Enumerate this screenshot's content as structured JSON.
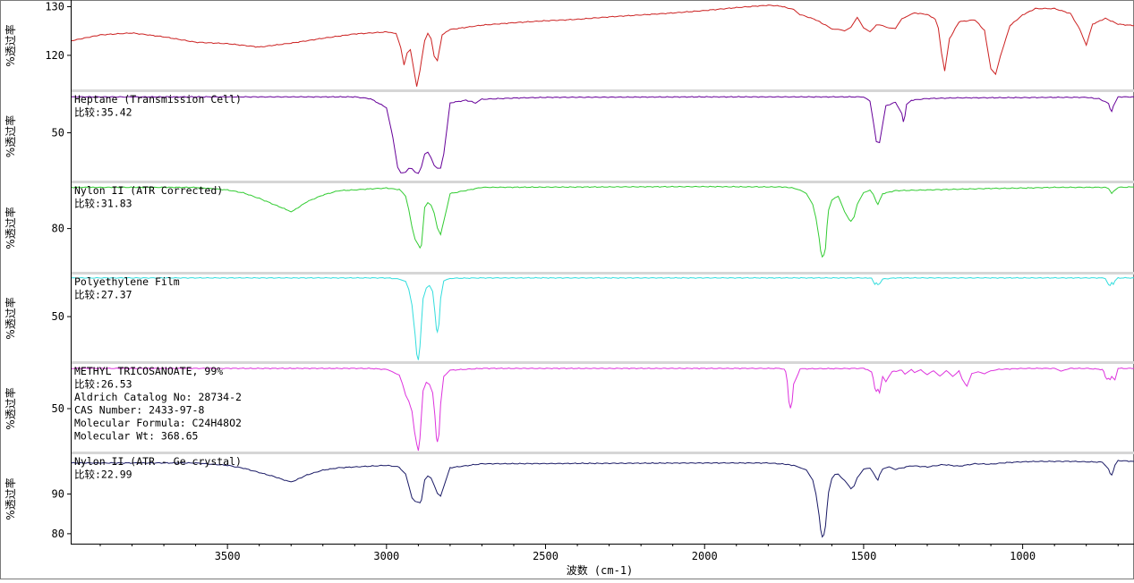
{
  "chart_data": {
    "type": "line",
    "xlabel": "波数 (cm-1)",
    "x_ticks": [
      3500,
      3000,
      2500,
      2000,
      1500,
      1000
    ],
    "xlim": [
      3990,
      650
    ],
    "grid": false,
    "panels": [
      {
        "color": "#cc2222",
        "ylabel": "%透过率",
        "ylim": [
          113,
          131
        ],
        "y_ticks": [
          120,
          130
        ],
        "labels": [],
        "x": [
          3990,
          3900,
          3800,
          3700,
          3600,
          3500,
          3400,
          3300,
          3200,
          3100,
          3000,
          2970,
          2955,
          2945,
          2935,
          2925,
          2915,
          2905,
          2895,
          2880,
          2870,
          2860,
          2850,
          2840,
          2825,
          2800,
          2700,
          2600,
          2500,
          2400,
          2300,
          2200,
          2100,
          2000,
          1900,
          1800,
          1760,
          1720,
          1700,
          1650,
          1620,
          1600,
          1580,
          1560,
          1540,
          1520,
          1500,
          1480,
          1460,
          1440,
          1420,
          1400,
          1380,
          1360,
          1340,
          1300,
          1275,
          1265,
          1255,
          1245,
          1230,
          1200,
          1150,
          1120,
          1100,
          1085,
          1070,
          1040,
          1000,
          960,
          900,
          850,
          820,
          800,
          780,
          740,
          700,
          650
        ],
        "y": [
          123,
          124.2,
          124.6,
          123.8,
          122.7,
          122.4,
          121.7,
          122.5,
          123.5,
          124.4,
          124.8,
          124.5,
          121.5,
          118,
          120.5,
          121.2,
          117.5,
          113.6,
          116.8,
          123,
          124.6,
          123.5,
          119.8,
          118.8,
          124.2,
          125.3,
          126.2,
          126.7,
          127.1,
          127.4,
          127.9,
          128.3,
          128.7,
          129.2,
          129.8,
          130.3,
          130.1,
          129.4,
          128.4,
          127.3,
          126.2,
          125.5,
          125.3,
          125,
          125.8,
          127.8,
          125.6,
          124.9,
          126.2,
          126.1,
          125.7,
          125.4,
          127.6,
          128.1,
          128.7,
          128.4,
          127.4,
          125.6,
          120.5,
          116.8,
          123.4,
          126.9,
          127.3,
          125.1,
          117.3,
          116.1,
          119.8,
          126.1,
          128.3,
          129.6,
          129.6,
          128.6,
          125.3,
          122.1,
          126.4,
          127.6,
          126.4,
          126.1
        ]
      },
      {
        "color": "#660099",
        "ylabel": "%透过率",
        "ylim": [
          30,
          67
        ],
        "y_ticks": [
          50
        ],
        "labels": [
          "Heptane (Transmission Cell)",
          "比较:35.42"
        ],
        "x": [
          3990,
          3100,
          3050,
          3000,
          2980,
          2965,
          2955,
          2940,
          2930,
          2920,
          2910,
          2900,
          2890,
          2880,
          2870,
          2860,
          2850,
          2840,
          2830,
          2820,
          2800,
          2750,
          2720,
          2700,
          2600,
          2500,
          2000,
          1600,
          1500,
          1480,
          1470,
          1460,
          1450,
          1440,
          1430,
          1400,
          1380,
          1375,
          1370,
          1365,
          1350,
          1300,
          1200,
          1000,
          900,
          800,
          760,
          730,
          725,
          720,
          715,
          700,
          650
        ],
        "y": [
          65,
          65,
          64.2,
          60.5,
          48,
          35.5,
          33.4,
          33.6,
          35,
          34.8,
          33.5,
          33.2,
          36,
          41,
          41.7,
          39.5,
          36.5,
          35.3,
          35.2,
          41,
          62.5,
          63.6,
          62.5,
          64,
          64.5,
          64.8,
          65,
          65,
          65,
          63,
          55,
          46.5,
          46,
          53.5,
          61.2,
          62.8,
          58,
          54.5,
          57,
          61.8,
          63.6,
          64.3,
          64.6,
          64.7,
          64.8,
          64.8,
          64.2,
          62.3,
          60,
          58.8,
          61,
          65,
          65
        ]
      },
      {
        "color": "#33cc33",
        "ylabel": "%透过率",
        "ylim": [
          68,
          92.3
        ],
        "y_ticks": [
          80
        ],
        "labels": [
          "Nylon II (ATR Corrected)",
          "比较:31.83"
        ],
        "x": [
          3990,
          3600,
          3500,
          3450,
          3400,
          3350,
          3310,
          3300,
          3290,
          3250,
          3200,
          3150,
          3100,
          3050,
          3000,
          2960,
          2940,
          2930,
          2920,
          2910,
          2900,
          2895,
          2890,
          2880,
          2870,
          2860,
          2850,
          2840,
          2830,
          2820,
          2800,
          2700,
          2000,
          1750,
          1720,
          1700,
          1680,
          1660,
          1650,
          1640,
          1635,
          1630,
          1625,
          1620,
          1615,
          1610,
          1600,
          1590,
          1580,
          1560,
          1545,
          1540,
          1530,
          1520,
          1500,
          1480,
          1470,
          1460,
          1455,
          1450,
          1440,
          1400,
          1300,
          1200,
          1100,
          1000,
          900,
          800,
          740,
          730,
          725,
          720,
          715,
          700,
          650
        ],
        "y": [
          91.2,
          91.2,
          90.5,
          89.7,
          88.2,
          86.4,
          85,
          84.6,
          85,
          87.3,
          89.1,
          90.3,
          90.5,
          90.8,
          91,
          90.6,
          88.8,
          85.3,
          80.5,
          77,
          75.5,
          74.7,
          75.5,
          85.8,
          87.1,
          86.4,
          84.2,
          80.1,
          78.3,
          82,
          89.5,
          91.2,
          91.4,
          91.3,
          91,
          90.5,
          89.5,
          86.5,
          83,
          77.5,
          74,
          72.3,
          72.8,
          74.5,
          80.5,
          85,
          87.8,
          88.5,
          88.8,
          84.5,
          82.5,
          82.1,
          83.2,
          86.5,
          89.8,
          90.5,
          89.3,
          87.2,
          86.5,
          87.6,
          89.5,
          90.3,
          90.5,
          90.7,
          90.9,
          91,
          91.2,
          91.2,
          91.2,
          90.8,
          90.2,
          89.5,
          90.1,
          91.2,
          91.3
        ]
      },
      {
        "color": "#33dddd",
        "ylabel": "%透过率",
        "ylim": [
          30,
          68.5
        ],
        "y_ticks": [
          50
        ],
        "labels": [
          "Polyethylene Film",
          "比较:27.37"
        ],
        "x": [
          3990,
          3000,
          2960,
          2940,
          2930,
          2920,
          2910,
          2905,
          2900,
          2895,
          2885,
          2875,
          2865,
          2855,
          2848,
          2843,
          2840,
          2835,
          2830,
          2820,
          2800,
          2700,
          2000,
          1500,
          1475,
          1470,
          1465,
          1460,
          1455,
          1450,
          1440,
          1400,
          1000,
          750,
          740,
          735,
          730,
          725,
          720,
          715,
          710,
          700,
          650
        ],
        "y": [
          67,
          67,
          66.5,
          65.5,
          62,
          55,
          42,
          33.5,
          31,
          37,
          58,
          62.5,
          63.5,
          61,
          52,
          44.5,
          43.5,
          47,
          58,
          65.5,
          66.8,
          67,
          67,
          67,
          66.8,
          65.4,
          64.2,
          65,
          64.2,
          64.6,
          66.5,
          67,
          67,
          67,
          66.8,
          65.5,
          64.2,
          63.8,
          65,
          64,
          65.5,
          67,
          67
        ]
      },
      {
        "color": "#dd33dd",
        "ylabel": "%透过率",
        "ylim": [
          30,
          70
        ],
        "y_ticks": [
          50
        ],
        "labels": [
          "METHYL TRICOSANOATE, 99%",
          "比较:26.53",
          "Aldrich Catalog No:  28734-2",
          "CAS Number:  2433-97-8",
          "Molecular Formula:  C24H48O2",
          "Molecular Wt:  368.65"
        ],
        "x": [
          3990,
          3050,
          3000,
          2980,
          2960,
          2950,
          2940,
          2930,
          2920,
          2912,
          2905,
          2900,
          2895,
          2885,
          2875,
          2865,
          2855,
          2848,
          2843,
          2840,
          2835,
          2830,
          2820,
          2800,
          2700,
          2000,
          1760,
          1750,
          1745,
          1740,
          1735,
          1730,
          1725,
          1720,
          1700,
          1500,
          1475,
          1470,
          1465,
          1460,
          1455,
          1450,
          1445,
          1440,
          1430,
          1420,
          1410,
          1380,
          1370,
          1350,
          1340,
          1320,
          1300,
          1280,
          1260,
          1240,
          1220,
          1200,
          1190,
          1180,
          1175,
          1170,
          1160,
          1140,
          1120,
          1100,
          1080,
          1000,
          900,
          880,
          850,
          800,
          750,
          745,
          740,
          735,
          730,
          725,
          720,
          710,
          700,
          650
        ],
        "y": [
          68,
          68,
          67.5,
          66.5,
          65,
          61,
          56,
          53.5,
          49,
          40,
          34,
          31,
          36.5,
          58,
          62,
          61,
          57,
          47,
          37,
          35,
          38.5,
          52,
          64.5,
          67.2,
          68,
          68,
          68,
          67.8,
          66.5,
          62,
          53,
          50,
          53,
          61,
          67.8,
          68,
          66.5,
          63.5,
          59,
          57.5,
          58.5,
          57,
          61,
          64.5,
          62.2,
          64.5,
          66.5,
          67.2,
          65.5,
          67.5,
          66,
          67.5,
          65.2,
          66.8,
          64.8,
          66.8,
          64.5,
          67,
          63,
          60.8,
          60,
          62,
          65.8,
          66.5,
          65.5,
          67,
          67.5,
          68,
          68,
          66.8,
          68,
          68,
          67.5,
          66.5,
          64,
          63,
          63.5,
          63,
          64.5,
          63,
          68,
          68
        ]
      },
      {
        "color": "#1a1a66",
        "ylabel": "%透过率",
        "ylim": [
          77.5,
          100
        ],
        "y_ticks": [
          80,
          90
        ],
        "labels": [
          "Nylon II (ATR - Ge crystal)",
          "比较:22.99"
        ],
        "x": [
          3990,
          3600,
          3500,
          3450,
          3400,
          3350,
          3310,
          3300,
          3290,
          3250,
          3200,
          3150,
          3100,
          3050,
          3000,
          2960,
          2940,
          2930,
          2920,
          2910,
          2900,
          2895,
          2890,
          2880,
          2870,
          2860,
          2850,
          2840,
          2830,
          2820,
          2800,
          2700,
          2000,
          1800,
          1750,
          1720,
          1700,
          1680,
          1660,
          1650,
          1640,
          1635,
          1630,
          1625,
          1620,
          1615,
          1610,
          1600,
          1590,
          1580,
          1560,
          1545,
          1540,
          1530,
          1520,
          1500,
          1480,
          1470,
          1460,
          1455,
          1450,
          1440,
          1420,
          1400,
          1350,
          1300,
          1250,
          1200,
          1150,
          1100,
          1050,
          1000,
          950,
          900,
          850,
          800,
          750,
          740,
          730,
          725,
          720,
          715,
          710,
          700,
          650
        ],
        "y": [
          97.8,
          97.8,
          97.2,
          96.5,
          95.4,
          94.3,
          93.2,
          93,
          93.3,
          94.8,
          96,
          96.6,
          96.8,
          97,
          97.2,
          96.8,
          95,
          92,
          89,
          88.2,
          88,
          87.8,
          88.5,
          93.5,
          94.5,
          94,
          92.2,
          90.2,
          89.5,
          91.8,
          96.6,
          97.6,
          97.8,
          97.8,
          97.5,
          97.2,
          96.6,
          96.1,
          93.5,
          90,
          84.5,
          81,
          79.2,
          79.8,
          82,
          86.5,
          90.5,
          93.8,
          94.8,
          95,
          93.5,
          91.8,
          91.2,
          92,
          94.2,
          96.2,
          96.5,
          95.4,
          94,
          93.5,
          94.8,
          96.3,
          96.8,
          96.2,
          97.1,
          96.8,
          97.4,
          97,
          97.6,
          97.5,
          97.9,
          98.1,
          98.2,
          98.2,
          98.2,
          98.1,
          98,
          97.2,
          96.3,
          95.2,
          94.8,
          95.8,
          97.2,
          98.4,
          98.2
        ]
      }
    ]
  }
}
